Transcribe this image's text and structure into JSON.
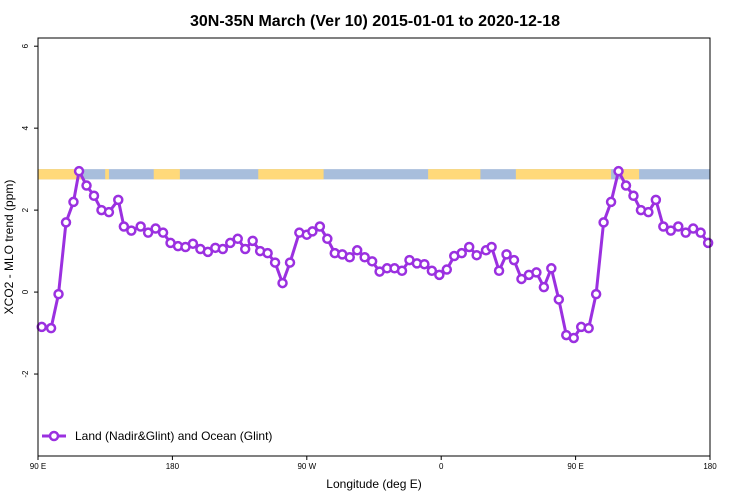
{
  "chart_data": {
    "type": "line",
    "title": "30N-35N March (Ver 10)   2015-01-01 to 2020-12-18",
    "xlabel": "Longitude (deg E)",
    "ylabel": "XCO2 - MLO trend (ppm)",
    "xlim": [
      90,
      450
    ],
    "ylim": [
      -4,
      6.2
    ],
    "x_ticks": [
      {
        "value": 90,
        "label": "90 E"
      },
      {
        "value": 162,
        "label": "180"
      },
      {
        "value": 234,
        "label": "90 W"
      },
      {
        "value": 306,
        "label": "0"
      },
      {
        "value": 378,
        "label": "90 E"
      },
      {
        "value": 450,
        "label": "180"
      }
    ],
    "y_ticks": [
      {
        "value": -2,
        "label": "-2"
      },
      {
        "value": 0,
        "label": "0"
      },
      {
        "value": 2,
        "label": "2"
      },
      {
        "value": 4,
        "label": "4"
      },
      {
        "value": 6,
        "label": "6"
      }
    ],
    "land_ocean_band": {
      "y_range": [
        2.75,
        3.0
      ],
      "land_color": "#FFD97A",
      "ocean_color": "#A8BEDC",
      "land_segments": [
        [
          90,
          114
        ],
        [
          126,
          128
        ],
        [
          152,
          166
        ],
        [
          208,
          243
        ],
        [
          299,
          327
        ],
        [
          346,
          397
        ],
        [
          402,
          412
        ]
      ]
    },
    "series": [
      {
        "name": "Land (Nadir&Glint) and Ocean (Glint)",
        "color": "#9B30E0",
        "x": [
          92,
          97,
          101,
          105,
          109,
          112,
          116,
          120,
          124,
          128,
          133,
          136,
          140,
          145,
          149,
          153,
          157,
          161,
          165,
          169,
          173,
          177,
          181,
          185,
          189,
          193,
          197,
          201,
          205,
          209,
          213,
          217,
          221,
          225,
          230,
          234,
          237,
          241,
          245,
          249,
          253,
          257,
          261,
          265,
          269,
          273,
          277,
          281,
          285,
          289,
          293,
          297,
          301,
          305,
          309,
          313,
          317,
          321,
          325,
          330,
          333,
          337,
          341,
          345,
          349,
          353,
          357,
          361,
          365,
          369,
          373,
          377,
          381,
          385,
          389,
          393,
          397,
          401,
          405,
          409,
          413,
          417,
          421,
          425,
          429,
          433,
          437,
          441,
          445,
          449
        ],
        "y": [
          -0.85,
          -0.88,
          -0.05,
          1.7,
          2.2,
          2.95,
          2.6,
          2.35,
          2.0,
          1.95,
          2.25,
          1.6,
          1.5,
          1.6,
          1.45,
          1.55,
          1.45,
          1.2,
          1.12,
          1.1,
          1.18,
          1.05,
          0.98,
          1.08,
          1.05,
          1.2,
          1.3,
          1.05,
          1.25,
          1.0,
          0.95,
          0.72,
          0.22,
          0.72,
          1.45,
          1.4,
          1.48,
          1.6,
          1.3,
          0.95,
          0.92,
          0.85,
          1.02,
          0.85,
          0.75,
          0.5,
          0.58,
          0.58,
          0.52,
          0.78,
          0.7,
          0.68,
          0.52,
          0.42,
          0.55,
          0.88,
          0.95,
          1.1,
          0.9,
          1.02,
          1.1,
          0.52,
          0.92,
          0.78,
          0.32,
          0.42,
          0.48,
          0.12,
          0.58,
          -0.18,
          -1.05,
          -1.12,
          -0.85,
          -0.88,
          -0.05,
          1.7,
          2.2,
          2.95,
          2.6,
          2.35,
          2.0,
          1.95,
          2.25,
          1.6,
          1.5,
          1.6,
          1.45,
          1.55,
          1.45,
          1.2
        ]
      }
    ],
    "legend": {
      "position": "bottom-left"
    },
    "grid": false
  }
}
